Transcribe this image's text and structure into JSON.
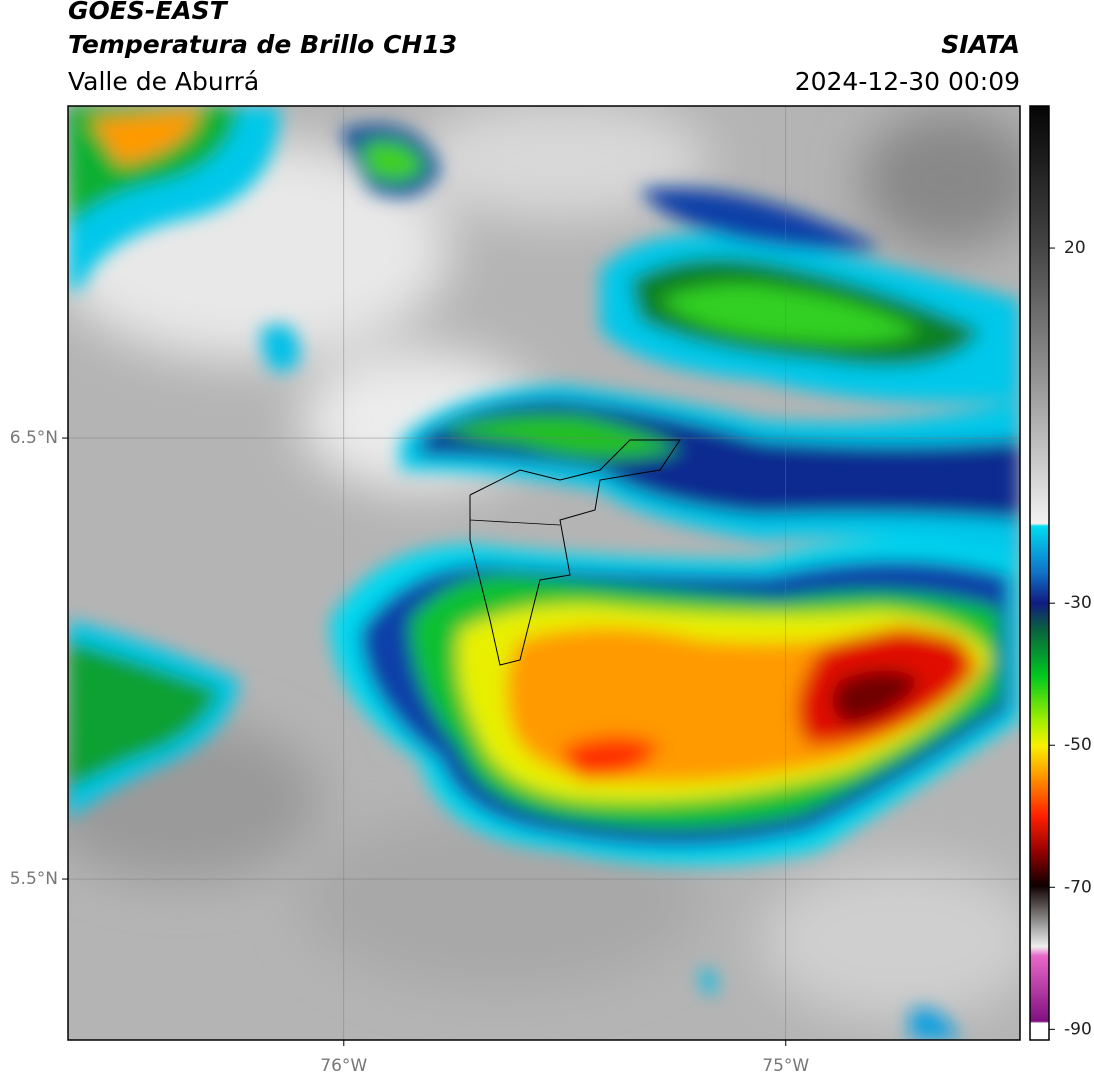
{
  "header": {
    "title": "GOES-EAST",
    "subtitle": "Temperatura de Brillo CH13",
    "region": "Valle de Aburrá",
    "source": "SIATA",
    "datetime": "2024-12-30 00:09"
  },
  "map": {
    "xlim": [
      -76.624,
      -74.47
    ],
    "ylim": [
      5.135,
      7.253
    ],
    "xticks": [
      {
        "value": -76,
        "label": "76°W"
      },
      {
        "value": -75,
        "label": "75°W"
      }
    ],
    "yticks": [
      {
        "value": 6.5,
        "label": "6.5°N"
      },
      {
        "value": 5.5,
        "label": "5.5°N"
      }
    ],
    "grid": true
  },
  "colorbar": {
    "lim": [
      -91.5,
      40
    ],
    "ticks": [
      20,
      -30,
      -50,
      -70,
      -90
    ]
  }
}
